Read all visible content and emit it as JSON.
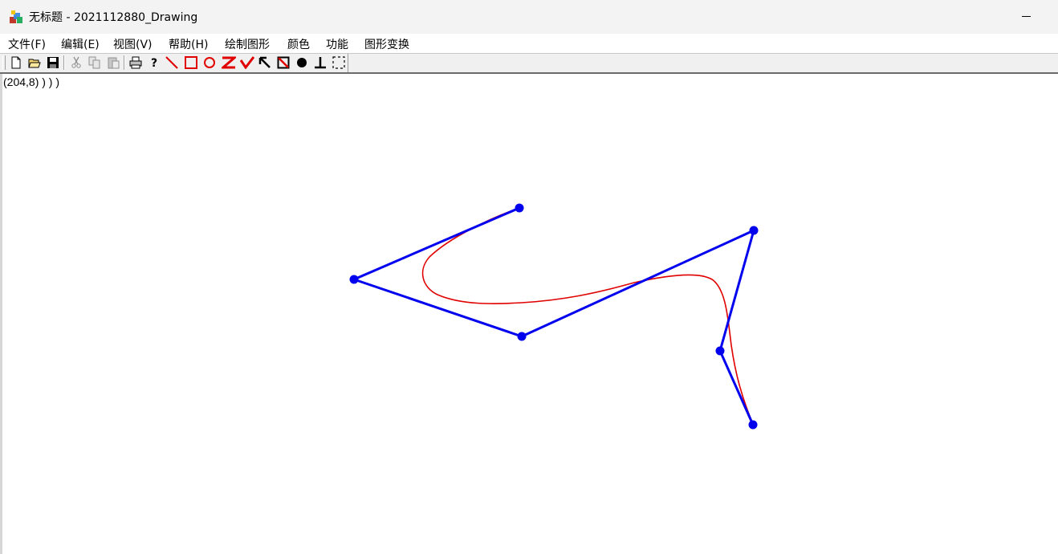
{
  "window": {
    "title": "无标题 - 2021112880_Drawing",
    "app_icon": "mfc-app-icon"
  },
  "menu": {
    "items": [
      {
        "label": "文件(F)"
      },
      {
        "label": "编辑(E)"
      },
      {
        "label": "视图(V)"
      },
      {
        "label": "帮助(H)"
      },
      {
        "label": "绘制图形"
      },
      {
        "label": "颜色"
      },
      {
        "label": "功能"
      },
      {
        "label": "图形变换"
      }
    ]
  },
  "toolbar": {
    "buttons": [
      {
        "icon": "new-file-icon"
      },
      {
        "icon": "open-folder-icon"
      },
      {
        "icon": "save-disk-icon"
      },
      {
        "icon": "cut-icon"
      },
      {
        "icon": "copy-icon"
      },
      {
        "icon": "paste-icon"
      },
      {
        "icon": "print-icon"
      },
      {
        "icon": "help-icon"
      },
      {
        "icon": "line-tool-icon"
      },
      {
        "icon": "rectangle-tool-icon"
      },
      {
        "icon": "circle-tool-icon"
      },
      {
        "icon": "zigzag-tool-icon"
      },
      {
        "icon": "check-polyline-tool-icon"
      },
      {
        "icon": "arrow-select-icon"
      },
      {
        "icon": "erase-rect-icon"
      },
      {
        "icon": "filled-circle-icon"
      },
      {
        "icon": "perpendicular-icon"
      },
      {
        "icon": "selection-frame-icon"
      }
    ]
  },
  "canvas": {
    "status_text": "(204,8) ) ) )",
    "colors": {
      "control_polygon": "#0000ee",
      "curve": "#e00000"
    }
  }
}
